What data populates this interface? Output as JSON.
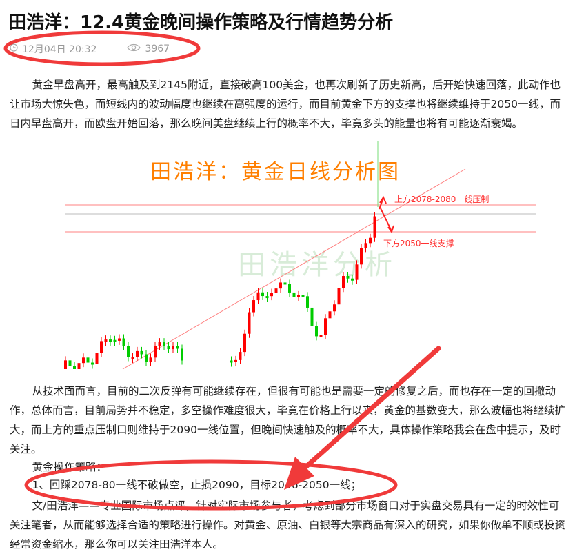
{
  "article": {
    "title": "田浩洋：12.4黄金晚间操作策略及行情趋势分析",
    "date": "12月04日 20:32",
    "views": "3967",
    "icons": {
      "date": "clock-icon",
      "views": "eye-icon"
    },
    "paragraphs": [
      "黄金早盘高开，最高触及到2145附近，直接破高100美金，也再次刷新了历史新高，后开始快速回落，此动作也让市场大惊失色，而短线内的波动幅度也继续在高强度的运行，而目前黄金下方的支撑也将继续维持于2050一线，而日内早盘高开，而欧盘开始回落，那么晚间美盘继续上行的概率不大，毕竟多头的能量也将有可能逐渐衰竭。",
      "从技术面而言，目前的二次反弹有可能继续存在，但很有可能也是需要一定的修复之后，而也存在一定的回撤动作，总体而言，目前局势并不稳定，多空操作难度很大，毕竟在价格上行以来，黄金的基数变大，那么波幅也将继续扩大，而上方的重点压制口则维持于2090一线位置，但晚间快速触及的概率不大，具体操作策略我会在盘中提示，及时关注。",
      "黄金操作策略：",
      "1、回踩2078-80一线不破做空，止损2090，目标2046-2050一线；",
      "文/田浩洋——专业国际市场点评，针对实际市场参与者，考虑到部分市场窗口对于实盘交易具有一定的时效性可关注笔者，从而能够选择合适的策略进行操作。对黄金、原油、白银等大宗商品有深入的研究，如果你做单不顺或投资经常资金缩水，那么你可以关注田浩洋本人。"
    ]
  },
  "chart_image": {
    "heading": "田浩洋：黄金日线分析图",
    "watermark": "田浩洋分析",
    "resistance_label": "上方2078-2080一线压制",
    "support_label": "下方2050一线支撑",
    "colors": {
      "up": "#ff0000",
      "down": "#00cc00",
      "heading": "#ff7f00",
      "lines": "#ff6666"
    }
  },
  "annotations": {
    "color": "#f03a3a"
  }
}
